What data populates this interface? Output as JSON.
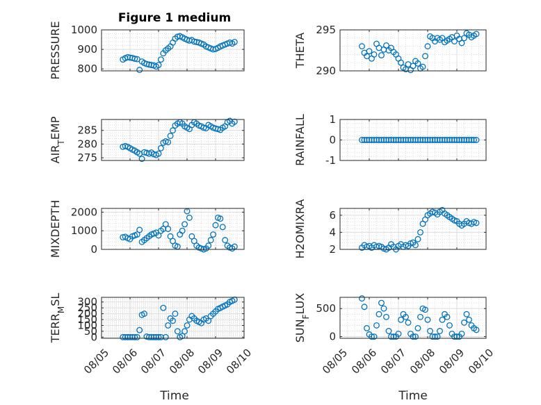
{
  "chart_data": [
    {
      "type": "scatter",
      "title": "Figure 1 medium",
      "ylabel": "PRESSURE",
      "ylim": [
        790,
        1000
      ],
      "yticks": [
        800,
        900,
        1000
      ],
      "xlim": [
        "08/05",
        "08/10"
      ],
      "xticks": [
        "08/05",
        "08/06",
        "08/07",
        "08/08",
        "08/09",
        "08/10"
      ],
      "grid": true,
      "marker_color": "#0072BD",
      "x": [
        "08/05 18:00",
        "08/05 20:00",
        "08/05 22:00",
        "08/06 00:00",
        "08/06 02:00",
        "08/06 04:00",
        "08/06 06:00",
        "08/06 08:00",
        "08/06 10:00",
        "08/06 12:00",
        "08/06 14:00",
        "08/06 16:00",
        "08/06 18:00",
        "08/06 20:00",
        "08/06 22:00",
        "08/07 00:00",
        "08/07 02:00",
        "08/07 04:00",
        "08/07 06:00",
        "08/07 08:00",
        "08/07 10:00",
        "08/07 12:00",
        "08/07 14:00",
        "08/07 16:00",
        "08/07 18:00",
        "08/07 20:00",
        "08/07 22:00",
        "08/08 00:00",
        "08/08 02:00",
        "08/08 04:00",
        "08/08 06:00",
        "08/08 08:00",
        "08/08 10:00",
        "08/08 12:00",
        "08/08 14:00",
        "08/08 16:00",
        "08/08 18:00",
        "08/08 20:00",
        "08/08 22:00",
        "08/09 00:00",
        "08/09 02:00",
        "08/09 04:00",
        "08/09 06:00",
        "08/09 08:00",
        "08/09 10:00",
        "08/09 12:00",
        "08/09 14:00",
        "08/09 16:00"
      ],
      "y": [
        848,
        855,
        860,
        858,
        856,
        852,
        850,
        795,
        838,
        830,
        825,
        822,
        820,
        818,
        812,
        820,
        848,
        880,
        895,
        905,
        915,
        935,
        955,
        965,
        968,
        962,
        955,
        950,
        945,
        948,
        940,
        938,
        935,
        930,
        925,
        915,
        910,
        905,
        900,
        902,
        908,
        915,
        920,
        925,
        930,
        935,
        930,
        938
      ]
    },
    {
      "type": "scatter",
      "title": "",
      "ylabel": "THETA",
      "ylim": [
        290,
        295
      ],
      "yticks": [
        290,
        295
      ],
      "xlim": [
        "08/05",
        "08/10"
      ],
      "xticks": [
        "08/05",
        "08/06",
        "08/07",
        "08/08",
        "08/09",
        "08/10"
      ],
      "grid": true,
      "marker_color": "#0072BD",
      "x": [
        "08/05 18:00",
        "08/05 20:00",
        "08/05 22:00",
        "08/06 00:00",
        "08/06 02:00",
        "08/06 04:00",
        "08/06 06:00",
        "08/06 08:00",
        "08/06 10:00",
        "08/06 12:00",
        "08/06 14:00",
        "08/06 16:00",
        "08/06 18:00",
        "08/06 20:00",
        "08/06 22:00",
        "08/07 00:00",
        "08/07 02:00",
        "08/07 04:00",
        "08/07 06:00",
        "08/07 08:00",
        "08/07 10:00",
        "08/07 12:00",
        "08/07 14:00",
        "08/07 16:00",
        "08/07 18:00",
        "08/07 20:00",
        "08/07 22:00",
        "08/08 00:00",
        "08/08 02:00",
        "08/08 04:00",
        "08/08 06:00",
        "08/08 08:00",
        "08/08 10:00",
        "08/08 12:00",
        "08/08 14:00",
        "08/08 16:00",
        "08/08 18:00",
        "08/08 20:00",
        "08/08 22:00",
        "08/09 00:00",
        "08/09 02:00",
        "08/09 04:00",
        "08/09 06:00",
        "08/09 08:00",
        "08/09 10:00",
        "08/09 12:00",
        "08/09 14:00",
        "08/09 16:00"
      ],
      "y": [
        293.0,
        292.2,
        291.8,
        292.4,
        291.5,
        292.0,
        293.3,
        292.8,
        291.9,
        292.6,
        293.1,
        292.5,
        292.8,
        292.3,
        292.0,
        291.5,
        291.0,
        290.4,
        290.2,
        290.8,
        290.1,
        290.6,
        291.2,
        290.9,
        290.3,
        290.5,
        291.8,
        293.0,
        294.2,
        294.0,
        293.6,
        294.0,
        293.8,
        294.0,
        293.5,
        293.7,
        293.9,
        294.1,
        293.6,
        294.3,
        293.9,
        293.4,
        294.0,
        294.6,
        294.4,
        294.1,
        294.3,
        294.5
      ]
    },
    {
      "type": "scatter",
      "title": "",
      "ylabel": "AIR_TEMP",
      "ylim": [
        274,
        289
      ],
      "yticks": [
        275,
        280,
        285
      ],
      "xlim": [
        "08/05",
        "08/10"
      ],
      "xticks": [
        "08/05",
        "08/06",
        "08/07",
        "08/08",
        "08/09",
        "08/10"
      ],
      "grid": true,
      "marker_color": "#0072BD",
      "x": [
        "08/05 18:00",
        "08/05 20:00",
        "08/05 22:00",
        "08/06 00:00",
        "08/06 02:00",
        "08/06 04:00",
        "08/06 06:00",
        "08/06 08:00",
        "08/06 10:00",
        "08/06 12:00",
        "08/06 14:00",
        "08/06 16:00",
        "08/06 18:00",
        "08/06 20:00",
        "08/06 22:00",
        "08/07 00:00",
        "08/07 02:00",
        "08/07 04:00",
        "08/07 06:00",
        "08/07 08:00",
        "08/07 10:00",
        "08/07 12:00",
        "08/07 14:00",
        "08/07 16:00",
        "08/07 18:00",
        "08/07 20:00",
        "08/07 22:00",
        "08/08 00:00",
        "08/08 02:00",
        "08/08 04:00",
        "08/08 06:00",
        "08/08 08:00",
        "08/08 10:00",
        "08/08 12:00",
        "08/08 14:00",
        "08/08 16:00",
        "08/08 18:00",
        "08/08 20:00",
        "08/08 22:00",
        "08/09 00:00",
        "08/09 02:00",
        "08/09 04:00",
        "08/09 06:00",
        "08/09 08:00",
        "08/09 10:00",
        "08/09 12:00",
        "08/09 14:00",
        "08/09 16:00"
      ],
      "y": [
        279.0,
        279.3,
        279.0,
        278.5,
        278.0,
        277.6,
        277.0,
        276.5,
        274.6,
        277.0,
        276.8,
        276.5,
        276.9,
        276.3,
        276.0,
        276.5,
        278.5,
        280.5,
        281.0,
        280.7,
        283.0,
        285.0,
        286.8,
        287.5,
        288.0,
        287.5,
        286.5,
        286.0,
        285.5,
        287.0,
        288.0,
        287.5,
        286.8,
        286.5,
        286.0,
        285.8,
        287.0,
        286.5,
        286.0,
        285.7,
        285.5,
        285.2,
        286.0,
        286.5,
        288.0,
        288.5,
        287.5,
        288.2
      ]
    },
    {
      "type": "scatter",
      "title": "",
      "ylabel": "RAINFALL",
      "ylim": [
        -1,
        1
      ],
      "yticks": [
        -1,
        0,
        1
      ],
      "xlim": [
        "08/05",
        "08/10"
      ],
      "xticks": [
        "08/05",
        "08/06",
        "08/07",
        "08/08",
        "08/09",
        "08/10"
      ],
      "grid": true,
      "marker_color": "#0072BD",
      "x": [
        "08/05 18:00",
        "08/05 20:00",
        "08/05 22:00",
        "08/06 00:00",
        "08/06 02:00",
        "08/06 04:00",
        "08/06 06:00",
        "08/06 08:00",
        "08/06 10:00",
        "08/06 12:00",
        "08/06 14:00",
        "08/06 16:00",
        "08/06 18:00",
        "08/06 20:00",
        "08/06 22:00",
        "08/07 00:00",
        "08/07 02:00",
        "08/07 04:00",
        "08/07 06:00",
        "08/07 08:00",
        "08/07 10:00",
        "08/07 12:00",
        "08/07 14:00",
        "08/07 16:00",
        "08/07 18:00",
        "08/07 20:00",
        "08/07 22:00",
        "08/08 00:00",
        "08/08 02:00",
        "08/08 04:00",
        "08/08 06:00",
        "08/08 08:00",
        "08/08 10:00",
        "08/08 12:00",
        "08/08 14:00",
        "08/08 16:00",
        "08/08 18:00",
        "08/08 20:00",
        "08/08 22:00",
        "08/09 00:00",
        "08/09 02:00",
        "08/09 04:00",
        "08/09 06:00",
        "08/09 08:00",
        "08/09 10:00",
        "08/09 12:00",
        "08/09 14:00",
        "08/09 16:00"
      ],
      "y": [
        0,
        0,
        0,
        0,
        0,
        0,
        0,
        0,
        0,
        0,
        0,
        0,
        0,
        0,
        0,
        0,
        0,
        0,
        0,
        0,
        0,
        0,
        0,
        0,
        0,
        0,
        0,
        0,
        0,
        0,
        0,
        0,
        0,
        0,
        0,
        0,
        0,
        0,
        0,
        0,
        0,
        0,
        0,
        0,
        0,
        0,
        0,
        0
      ]
    },
    {
      "type": "scatter",
      "title": "",
      "ylabel": "MIXDEPTH",
      "ylim": [
        0,
        2200
      ],
      "yticks": [
        0,
        1000,
        2000
      ],
      "xlim": [
        "08/05",
        "08/10"
      ],
      "xticks": [
        "08/05",
        "08/06",
        "08/07",
        "08/08",
        "08/09",
        "08/10"
      ],
      "grid": true,
      "marker_color": "#0072BD",
      "x": [
        "08/05 18:00",
        "08/05 20:00",
        "08/05 22:00",
        "08/06 00:00",
        "08/06 02:00",
        "08/06 04:00",
        "08/06 06:00",
        "08/06 08:00",
        "08/06 10:00",
        "08/06 12:00",
        "08/06 14:00",
        "08/06 16:00",
        "08/06 18:00",
        "08/06 20:00",
        "08/06 22:00",
        "08/07 00:00",
        "08/07 02:00",
        "08/07 04:00",
        "08/07 06:00",
        "08/07 08:00",
        "08/07 10:00",
        "08/07 12:00",
        "08/07 14:00",
        "08/07 16:00",
        "08/07 18:00",
        "08/07 20:00",
        "08/07 22:00",
        "08/08 00:00",
        "08/08 02:00",
        "08/08 04:00",
        "08/08 06:00",
        "08/08 08:00",
        "08/08 10:00",
        "08/08 12:00",
        "08/08 14:00",
        "08/08 16:00",
        "08/08 18:00",
        "08/08 20:00",
        "08/08 22:00",
        "08/09 00:00",
        "08/09 02:00",
        "08/09 04:00",
        "08/09 06:00",
        "08/09 08:00",
        "08/09 10:00",
        "08/09 12:00",
        "08/09 14:00",
        "08/09 16:00"
      ],
      "y": [
        650,
        680,
        600,
        550,
        700,
        750,
        800,
        1050,
        400,
        500,
        600,
        700,
        800,
        850,
        900,
        750,
        1000,
        1100,
        1350,
        1100,
        700,
        450,
        200,
        150,
        800,
        1000,
        1350,
        2050,
        1700,
        700,
        450,
        200,
        100,
        50,
        0,
        50,
        200,
        500,
        800,
        1300,
        1700,
        1650,
        1200,
        500,
        200,
        100,
        50,
        150
      ]
    },
    {
      "type": "scatter",
      "title": "",
      "ylabel": "H2OMIXRA",
      "ylim": [
        2,
        6.8
      ],
      "yticks": [
        2,
        4,
        6
      ],
      "xlim": [
        "08/05",
        "08/10"
      ],
      "xticks": [
        "08/05",
        "08/06",
        "08/07",
        "08/08",
        "08/09",
        "08/10"
      ],
      "grid": true,
      "marker_color": "#0072BD",
      "x": [
        "08/05 18:00",
        "08/05 20:00",
        "08/05 22:00",
        "08/06 00:00",
        "08/06 02:00",
        "08/06 04:00",
        "08/06 06:00",
        "08/06 08:00",
        "08/06 10:00",
        "08/06 12:00",
        "08/06 14:00",
        "08/06 16:00",
        "08/06 18:00",
        "08/06 20:00",
        "08/06 22:00",
        "08/07 00:00",
        "08/07 02:00",
        "08/07 04:00",
        "08/07 06:00",
        "08/07 08:00",
        "08/07 10:00",
        "08/07 12:00",
        "08/07 14:00",
        "08/07 16:00",
        "08/07 18:00",
        "08/07 20:00",
        "08/07 22:00",
        "08/08 00:00",
        "08/08 02:00",
        "08/08 04:00",
        "08/08 06:00",
        "08/08 08:00",
        "08/08 10:00",
        "08/08 12:00",
        "08/08 14:00",
        "08/08 16:00",
        "08/08 18:00",
        "08/08 20:00",
        "08/08 22:00",
        "08/09 00:00",
        "08/09 02:00",
        "08/09 04:00",
        "08/09 06:00",
        "08/09 08:00",
        "08/09 10:00",
        "08/09 12:00",
        "08/09 14:00",
        "08/09 16:00"
      ],
      "y": [
        2.2,
        2.5,
        2.3,
        2.4,
        2.2,
        2.5,
        2.3,
        2.4,
        2.3,
        2.1,
        2.0,
        2.2,
        2.6,
        2.3,
        2.0,
        2.4,
        2.6,
        2.3,
        2.5,
        2.4,
        2.7,
        2.8,
        2.5,
        3.2,
        4.0,
        5.0,
        5.5,
        6.0,
        6.2,
        6.4,
        6.3,
        6.1,
        6.4,
        6.6,
        6.2,
        6.0,
        5.8,
        5.6,
        5.4,
        5.3,
        5.0,
        4.8,
        5.0,
        5.3,
        5.1,
        5.0,
        5.2,
        5.1
      ]
    },
    {
      "type": "scatter",
      "title": "",
      "ylabel": "TERR_MSL",
      "ylim": [
        -10,
        340
      ],
      "yticks": [
        0,
        50,
        100,
        150,
        200,
        250,
        300
      ],
      "xlim": [
        "08/05",
        "08/10"
      ],
      "xticks": [
        "08/05",
        "08/06",
        "08/07",
        "08/08",
        "08/09",
        "08/10"
      ],
      "grid": true,
      "marker_color": "#0072BD",
      "x": [
        "08/05 18:00",
        "08/05 20:00",
        "08/05 22:00",
        "08/06 00:00",
        "08/06 02:00",
        "08/06 04:00",
        "08/06 06:00",
        "08/06 08:00",
        "08/06 10:00",
        "08/06 12:00",
        "08/06 14:00",
        "08/06 16:00",
        "08/06 18:00",
        "08/06 20:00",
        "08/06 22:00",
        "08/07 00:00",
        "08/07 02:00",
        "08/07 04:00",
        "08/07 06:00",
        "08/07 08:00",
        "08/07 10:00",
        "08/07 12:00",
        "08/07 14:00",
        "08/07 16:00",
        "08/07 18:00",
        "08/07 20:00",
        "08/07 22:00",
        "08/08 00:00",
        "08/08 02:00",
        "08/08 04:00",
        "08/08 06:00",
        "08/08 08:00",
        "08/08 10:00",
        "08/08 12:00",
        "08/08 14:00",
        "08/08 16:00",
        "08/08 18:00",
        "08/08 20:00",
        "08/08 22:00",
        "08/09 00:00",
        "08/09 02:00",
        "08/09 04:00",
        "08/09 06:00",
        "08/09 08:00",
        "08/09 10:00",
        "08/09 12:00",
        "08/09 14:00",
        "08/09 16:00"
      ],
      "y": [
        0,
        0,
        0,
        0,
        0,
        0,
        0,
        60,
        190,
        200,
        5,
        0,
        0,
        0,
        0,
        0,
        0,
        250,
        0,
        100,
        160,
        140,
        200,
        50,
        0,
        10,
        50,
        100,
        150,
        180,
        160,
        140,
        130,
        120,
        150,
        160,
        140,
        180,
        200,
        220,
        240,
        250,
        260,
        270,
        280,
        300,
        310,
        320
      ]
    },
    {
      "type": "scatter",
      "title": "",
      "ylabel": "SUN_FLUX",
      "ylim": [
        -30,
        700
      ],
      "yticks": [
        0,
        500
      ],
      "xlim": [
        "08/05",
        "08/10"
      ],
      "xticks": [
        "08/05",
        "08/06",
        "08/07",
        "08/08",
        "08/09",
        "08/10"
      ],
      "grid": true,
      "marker_color": "#0072BD",
      "x": [
        "08/05 18:00",
        "08/05 20:00",
        "08/05 22:00",
        "08/06 00:00",
        "08/06 02:00",
        "08/06 04:00",
        "08/06 06:00",
        "08/06 08:00",
        "08/06 10:00",
        "08/06 12:00",
        "08/06 14:00",
        "08/06 16:00",
        "08/06 18:00",
        "08/06 20:00",
        "08/06 22:00",
        "08/07 00:00",
        "08/07 02:00",
        "08/07 04:00",
        "08/07 06:00",
        "08/07 08:00",
        "08/07 10:00",
        "08/07 12:00",
        "08/07 14:00",
        "08/07 16:00",
        "08/07 18:00",
        "08/07 20:00",
        "08/07 22:00",
        "08/08 00:00",
        "08/08 02:00",
        "08/08 04:00",
        "08/08 06:00",
        "08/08 08:00",
        "08/08 10:00",
        "08/08 12:00",
        "08/08 14:00",
        "08/08 16:00",
        "08/08 18:00",
        "08/08 20:00",
        "08/08 22:00",
        "08/09 00:00",
        "08/09 02:00",
        "08/09 04:00",
        "08/09 06:00",
        "08/09 08:00",
        "08/09 10:00",
        "08/09 12:00",
        "08/09 14:00",
        "08/09 16:00"
      ],
      "y": [
        680,
        530,
        150,
        40,
        0,
        0,
        200,
        400,
        600,
        500,
        350,
        100,
        0,
        0,
        0,
        50,
        300,
        400,
        350,
        250,
        50,
        0,
        0,
        150,
        350,
        500,
        480,
        300,
        100,
        0,
        0,
        0,
        100,
        300,
        400,
        350,
        200,
        50,
        0,
        0,
        0,
        50,
        250,
        400,
        300,
        200,
        150,
        120
      ]
    }
  ],
  "xlabel": "Time"
}
